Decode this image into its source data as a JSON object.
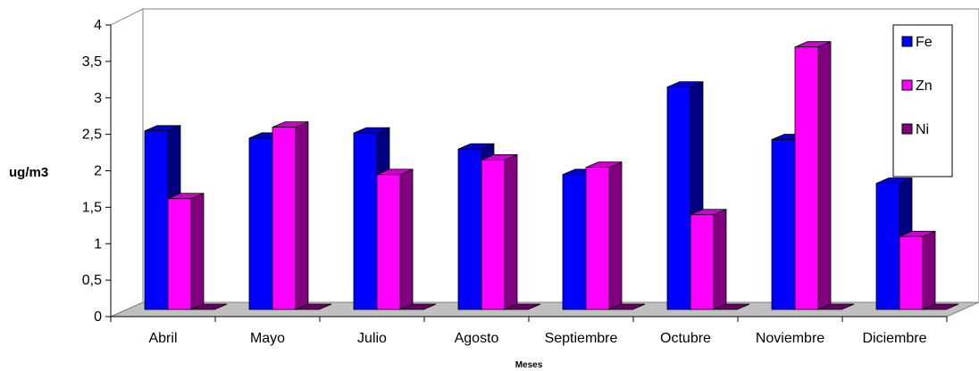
{
  "chart_data": {
    "type": "bar",
    "title": "",
    "xlabel": "Meses",
    "ylabel": "ug/m3",
    "ylim": [
      0,
      4
    ],
    "yticks": [
      "0",
      "0,5",
      "1",
      "1,5",
      "2",
      "2,5",
      "3",
      "3,5",
      "4"
    ],
    "categories": [
      "Abril",
      "Mayo",
      "Julio",
      "Agosto",
      "Septiembre",
      "Octubre",
      "Noviembre",
      "Diciembre"
    ],
    "series": [
      {
        "name": "Fe",
        "color": "#0000ff",
        "values": [
          2.45,
          2.35,
          2.42,
          2.2,
          1.85,
          3.05,
          2.33,
          1.73
        ]
      },
      {
        "name": "Zn",
        "color": "#ff00ff",
        "values": [
          1.52,
          2.5,
          1.85,
          2.05,
          1.95,
          1.3,
          3.6,
          1.0
        ]
      },
      {
        "name": "Ni",
        "color": "#800080",
        "values": [
          0.0,
          0.0,
          0.0,
          0.0,
          0.0,
          0.0,
          0.0,
          0.0
        ]
      }
    ],
    "legend": "right",
    "style": "3d-clustered-column",
    "grid": false
  }
}
